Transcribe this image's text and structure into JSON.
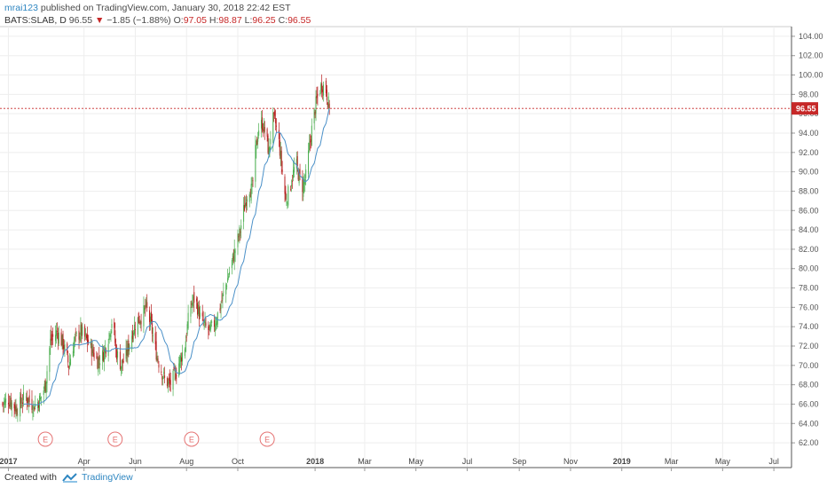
{
  "header": {
    "user": "mrai123",
    "published_text": "published on TradingView.com, January 30, 2018 22:42 EST",
    "symbol": "BATS:SLAB, D",
    "last": "96.55",
    "change": "−1.85 (−1.88%)",
    "o_label": "O:",
    "o_val": "97.05",
    "h_label": "H:",
    "h_val": "98.87",
    "l_label": "L:",
    "l_val": "96.25",
    "c_label": "C:",
    "c_val": "96.55"
  },
  "footer": {
    "created_with": "Created with",
    "brand": "TradingView"
  },
  "colors": {
    "up": "#4caf50",
    "down": "#b71c1c",
    "ma": "#4a90c8",
    "price_line": "#c62828",
    "grid": "#eeeeee",
    "earnings": "#e57373"
  },
  "chart_data": {
    "type": "candlestick",
    "title": "",
    "y_ticks": [
      "62.00",
      "64.00",
      "66.00",
      "68.00",
      "70.00",
      "72.00",
      "74.00",
      "76.00",
      "78.00",
      "80.00",
      "82.00",
      "84.00",
      "86.00",
      "88.00",
      "90.00",
      "92.00",
      "94.00",
      "96.00",
      "98.00",
      "100.00",
      "102.00",
      "104.00"
    ],
    "ylim": [
      61,
      105
    ],
    "x_ticks": [
      {
        "label": "2017",
        "bold": true,
        "day": 0
      },
      {
        "label": "Apr",
        "bold": false,
        "day": 90
      },
      {
        "label": "Jun",
        "bold": false,
        "day": 151
      },
      {
        "label": "Aug",
        "bold": false,
        "day": 212
      },
      {
        "label": "Oct",
        "bold": false,
        "day": 273
      },
      {
        "label": "2018",
        "bold": true,
        "day": 365
      },
      {
        "label": "Mar",
        "bold": false,
        "day": 424
      },
      {
        "label": "May",
        "bold": false,
        "day": 485
      },
      {
        "label": "Jul",
        "bold": false,
        "day": 546
      },
      {
        "label": "Sep",
        "bold": false,
        "day": 608
      },
      {
        "label": "Nov",
        "bold": false,
        "day": 669
      },
      {
        "label": "2019",
        "bold": true,
        "day": 730
      },
      {
        "label": "Mar",
        "bold": false,
        "day": 789
      },
      {
        "label": "May",
        "bold": false,
        "day": 850
      },
      {
        "label": "Jul",
        "bold": false,
        "day": 911
      }
    ],
    "xlim_days": [
      -10,
      932
    ],
    "earnings_markers": [
      {
        "label": "E",
        "day": 44
      },
      {
        "label": "E",
        "day": 127
      },
      {
        "label": "E",
        "day": 218
      },
      {
        "label": "E",
        "day": 308
      }
    ],
    "last_price": {
      "value": 96.55,
      "label": "96.55"
    },
    "close_path": [
      [
        -8,
        66
      ],
      [
        0,
        66.5
      ],
      [
        10,
        65.5
      ],
      [
        20,
        66.8
      ],
      [
        30,
        65.8
      ],
      [
        38,
        66.5
      ],
      [
        44,
        68
      ],
      [
        50,
        72.5
      ],
      [
        58,
        73.5
      ],
      [
        66,
        72
      ],
      [
        72,
        70
      ],
      [
        78,
        72.5
      ],
      [
        86,
        73.5
      ],
      [
        94,
        72.5
      ],
      [
        100,
        71.5
      ],
      [
        106,
        70.5
      ],
      [
        112,
        71
      ],
      [
        118,
        72.5
      ],
      [
        124,
        75
      ],
      [
        128,
        71.5
      ],
      [
        134,
        70
      ],
      [
        140,
        71
      ],
      [
        146,
        73
      ],
      [
        152,
        74.5
      ],
      [
        158,
        75
      ],
      [
        164,
        76
      ],
      [
        170,
        74
      ],
      [
        174,
        72
      ],
      [
        180,
        70
      ],
      [
        186,
        68.5
      ],
      [
        192,
        68
      ],
      [
        198,
        69
      ],
      [
        204,
        70.5
      ],
      [
        210,
        72
      ],
      [
        216,
        76
      ],
      [
        222,
        77
      ],
      [
        228,
        75
      ],
      [
        234,
        74
      ],
      [
        240,
        73.5
      ],
      [
        246,
        74.5
      ],
      [
        252,
        76
      ],
      [
        258,
        78
      ],
      [
        264,
        80
      ],
      [
        270,
        82
      ],
      [
        276,
        84
      ],
      [
        280,
        86
      ],
      [
        286,
        88.5
      ],
      [
        290,
        88
      ],
      [
        294,
        92
      ],
      [
        298,
        94.5
      ],
      [
        302,
        95
      ],
      [
        306,
        94
      ],
      [
        310,
        92
      ],
      [
        314,
        95.5
      ],
      [
        318,
        95
      ],
      [
        322,
        93
      ],
      [
        326,
        90
      ],
      [
        330,
        87
      ],
      [
        334,
        88
      ],
      [
        338,
        89.5
      ],
      [
        342,
        91
      ],
      [
        346,
        89.5
      ],
      [
        350,
        88.5
      ],
      [
        354,
        89.5
      ],
      [
        358,
        92.5
      ],
      [
        362,
        95
      ],
      [
        366,
        97
      ],
      [
        370,
        98.5
      ],
      [
        374,
        99
      ],
      [
        378,
        98.4
      ],
      [
        382,
        96.55
      ]
    ],
    "ma_period": 20,
    "series": [
      {
        "name": "SLAB",
        "kind": "ohlc",
        "note": "daily bars generated along close_path"
      }
    ]
  }
}
